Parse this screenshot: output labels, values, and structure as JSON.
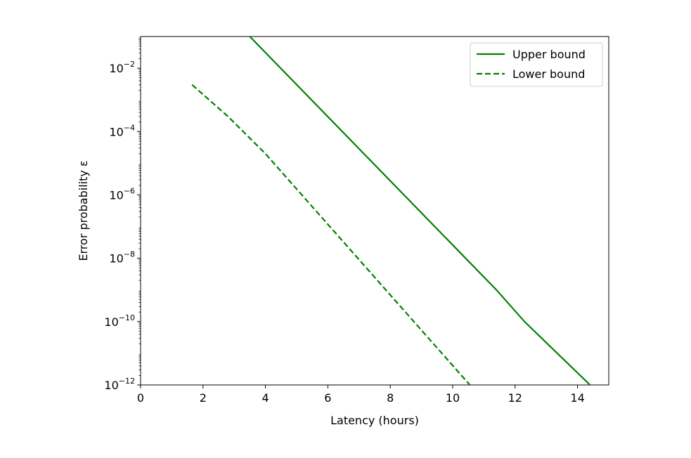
{
  "chart_data": {
    "type": "line",
    "title": "",
    "xlabel": "Latency (hours)",
    "ylabel": "Error probability ε",
    "xlim": [
      0,
      15
    ],
    "ylim": [
      1e-12,
      0.1
    ],
    "yscale": "log",
    "grid": false,
    "legend_position": "top-right",
    "x_ticks": [
      "0",
      "2",
      "4",
      "6",
      "8",
      "10",
      "12",
      "14"
    ],
    "y_ticks": [
      {
        "base": "10",
        "exp": "−2"
      },
      {
        "base": "10",
        "exp": "−4"
      },
      {
        "base": "10",
        "exp": "−6"
      },
      {
        "base": "10",
        "exp": "−8"
      },
      {
        "base": "10",
        "exp": "−10"
      },
      {
        "base": "10",
        "exp": "−12"
      }
    ],
    "series": [
      {
        "name": "Upper bound",
        "style": "solid",
        "color": "#008000",
        "x": [
          3.5,
          11.4,
          12.3,
          14.4
        ],
        "y": [
          0.1,
          1e-09,
          1e-10,
          1e-12
        ]
      },
      {
        "name": "Lower bound",
        "style": "dashed",
        "color": "#008000",
        "x": [
          1.65,
          2.8,
          4.0,
          10.55
        ],
        "y": [
          0.003,
          0.0003,
          2e-05,
          1e-12
        ]
      }
    ]
  }
}
